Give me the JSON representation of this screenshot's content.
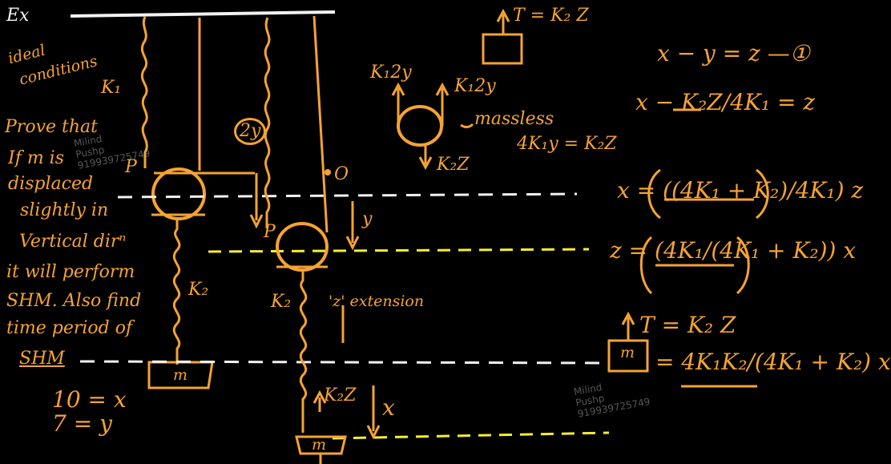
{
  "colors": {
    "ink": "#f5a332",
    "white": "#f2f2f2",
    "yellow": "#f7ee2f",
    "background": "#000000"
  },
  "left_notes": {
    "ex": "Ex",
    "ideal": "ideal",
    "conditions": "conditions",
    "k1": "K₁",
    "line1": "Prove that",
    "line2": "If m is",
    "line3": "displaced",
    "line4": "slightly in",
    "line5": "Vertical dirⁿ",
    "line6": "it will perform",
    "line7": "SHM. Also find",
    "line8": "time period of",
    "line9": "SHM",
    "eq1": "10 = x",
    "eq2": "7 = y"
  },
  "diagram": {
    "two_y": "2y",
    "p_left": "P",
    "p_right": "P",
    "o": "O",
    "y": "y",
    "k2_left": "K₂",
    "k2_right": "K₂",
    "z_ext": "'z' extension",
    "k2z": "K₂Z",
    "x": "x",
    "m_left": "m",
    "m_right": "m"
  },
  "fbd": {
    "tension_top": "T = K₂ Z",
    "k1_2y_left": "K₁2y",
    "k1_2y_right": "K₁2y",
    "massless": "massless",
    "k2z": "K₂Z",
    "balance": "4K₁y = K₂Z"
  },
  "derivation": {
    "eq1": "x − y = z —①",
    "eq2": "x − K₂Z/4K₁ = z",
    "eq3": "x = ((4K₁ + K₂)/4K₁) z",
    "eq4": "z = (4K₁/(4K₁ + K₂)) x",
    "tension": "T = K₂ Z",
    "result": "= 4K₁K₂/(4K₁ + K₂) x",
    "m_box": "m"
  },
  "watermark": {
    "text1": "Milind\nPushp\n919939725749",
    "text2": "Milind\nPushp\n919939725749"
  }
}
